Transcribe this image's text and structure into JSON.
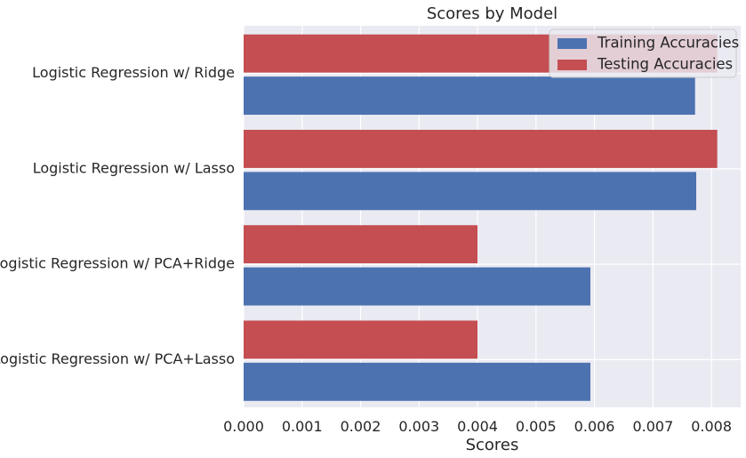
{
  "chart_data": {
    "type": "bar",
    "orientation": "horizontal",
    "title": "Scores by Model",
    "xlabel": "Scores",
    "ylabel": "",
    "categories": [
      "Logistic Regression w/ Ridge",
      "Logistic Regression w/ Lasso",
      "Logistic Regression w/ PCA+Ridge",
      "Logistic Regression w/ PCA+Lasso"
    ],
    "series": [
      {
        "name": "Training Accuracies",
        "color": "#4c72b0",
        "values": [
          0.00772,
          0.00774,
          0.00593,
          0.00593
        ]
      },
      {
        "name": "Testing Accuracies",
        "color": "#c44e52",
        "values": [
          0.0081,
          0.0081,
          0.004,
          0.004
        ]
      }
    ],
    "xlim": [
      0,
      0.0085
    ],
    "xticks": [
      0,
      0.001,
      0.002,
      0.003,
      0.004,
      0.005,
      0.006,
      0.007,
      0.008
    ],
    "xtick_labels": [
      "0.000",
      "0.001",
      "0.002",
      "0.003",
      "0.004",
      "0.005",
      "0.006",
      "0.007",
      "0.008"
    ],
    "grid": true,
    "legend_position": "top-right",
    "colors": {
      "background": "#eaeaf2",
      "grid": "#ffffff",
      "text": "#262626"
    }
  }
}
